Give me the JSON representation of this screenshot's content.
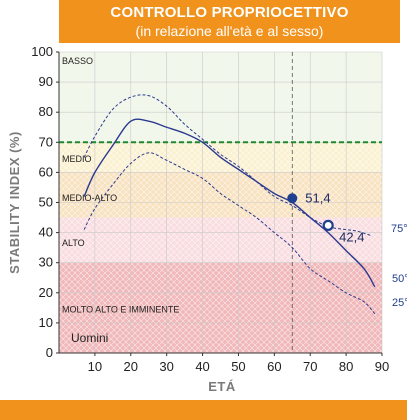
{
  "header": {
    "title": "CONTROLLO PROPRIOCETTIVO",
    "subtitle": "(in relazione all'età e al sesso)"
  },
  "chart_data": {
    "type": "line",
    "xlabel": "ETÁ",
    "ylabel": "STABILITY INDEX (%)",
    "xlim": [
      0,
      90
    ],
    "ylim": [
      0,
      100
    ],
    "xticks": [
      10,
      20,
      30,
      40,
      50,
      60,
      70,
      80,
      90
    ],
    "yticks": [
      0,
      10,
      20,
      30,
      40,
      50,
      60,
      70,
      80,
      90,
      100
    ],
    "gender_label": "Uomini",
    "colors": {
      "curve": "#2b3a8f",
      "threshold": "#1e8a2e",
      "band_basso": "#f2f7ec",
      "band_medio": "#fbf1d2",
      "band_medio_alto": "#f8e2c0",
      "band_alto": "#f9dde0",
      "band_molto_alto": "#f1b8ba",
      "marker_fill": "#1f3f8f"
    },
    "bands": [
      {
        "label": "BASSO",
        "from": 70,
        "to": 100
      },
      {
        "label": "MEDIO",
        "from": 60,
        "to": 70
      },
      {
        "label": "MEDIO-ALTO",
        "from": 45,
        "to": 60
      },
      {
        "label": "ALTO",
        "from": 30,
        "to": 45
      },
      {
        "label": "MOLTO ALTO E IMMINENTE",
        "from": 0,
        "to": 30
      }
    ],
    "threshold_y": 70,
    "vline_x": 65,
    "series": [
      {
        "name": "75°",
        "style": "dashed",
        "x": [
          7,
          10,
          15,
          20,
          25,
          30,
          35,
          40,
          45,
          50,
          55,
          60,
          65,
          70,
          75,
          80,
          83,
          87
        ],
        "y": [
          65,
          72,
          81,
          85,
          85.5,
          82,
          76,
          71,
          66,
          62,
          57,
          52,
          49,
          45,
          42,
          41,
          40.5,
          39
        ]
      },
      {
        "name": "50°",
        "style": "solid",
        "x": [
          7,
          10,
          15,
          20,
          25,
          30,
          35,
          40,
          45,
          50,
          55,
          60,
          65,
          70,
          75,
          80,
          85,
          88
        ],
        "y": [
          52,
          60,
          69,
          77,
          77,
          75,
          73,
          70,
          65,
          61,
          57,
          53,
          50,
          45,
          40,
          34,
          28,
          22
        ]
      },
      {
        "name": "25°",
        "style": "dashed",
        "x": [
          7,
          10,
          15,
          20,
          25,
          30,
          35,
          40,
          45,
          50,
          55,
          60,
          65,
          70,
          75,
          80,
          85,
          88
        ],
        "y": [
          41,
          48,
          56,
          63,
          66.5,
          64,
          61,
          58,
          53,
          49,
          45,
          40,
          35,
          28,
          24,
          20,
          17,
          13
        ]
      }
    ],
    "points": [
      {
        "x": 65,
        "y": 51.4,
        "label": "51,4",
        "filled": true
      },
      {
        "x": 75,
        "y": 42.4,
        "label": "42,4",
        "filled": false
      }
    ]
  }
}
